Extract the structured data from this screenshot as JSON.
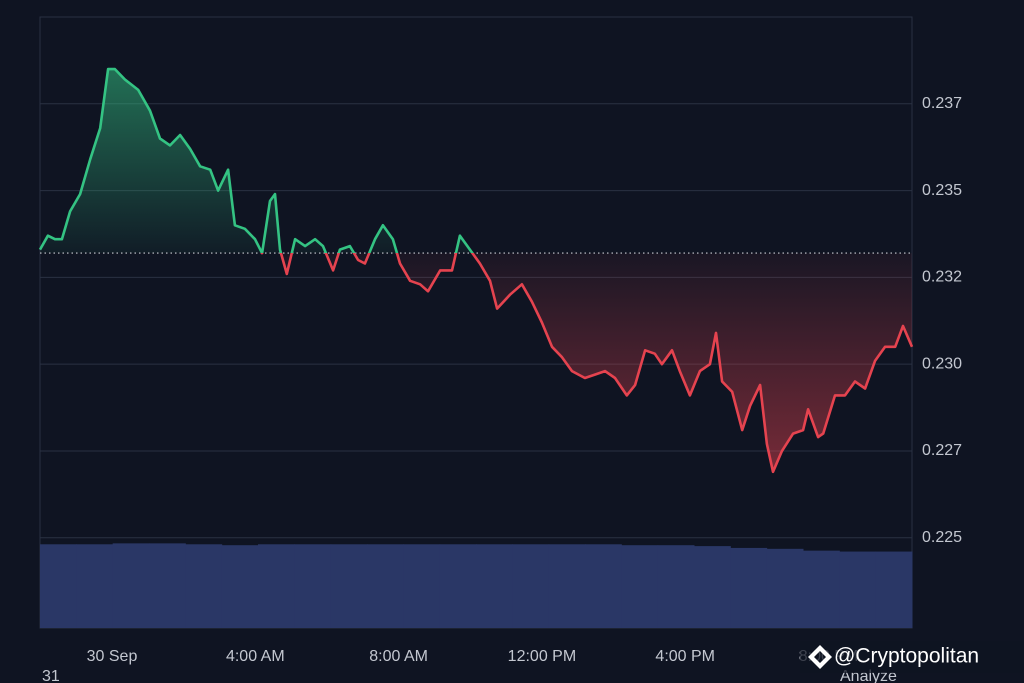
{
  "chart_data": {
    "type": "line",
    "x": [
      -2.01,
      -1.79,
      -1.59,
      -1.4,
      -1.17,
      -0.89,
      -0.61,
      -0.33,
      -0.11,
      0.08,
      0.36,
      0.73,
      1.06,
      1.34,
      1.62,
      1.9,
      2.18,
      2.46,
      2.74,
      2.96,
      3.24,
      3.43,
      3.71,
      3.99,
      4.19,
      4.41,
      4.55,
      4.69,
      4.88,
      5.11,
      5.39,
      5.67,
      5.89,
      6.17,
      6.36,
      6.64,
      6.87,
      7.06,
      7.34,
      7.56,
      7.84,
      8.04,
      8.32,
      8.6,
      8.82,
      9.16,
      9.49,
      9.71,
      9.99,
      10.27,
      10.55,
      10.75,
      11.11,
      11.44,
      11.72,
      12.0,
      12.28,
      12.56,
      12.84,
      13.2,
      13.48,
      13.76,
      14.04,
      14.37,
      14.6,
      14.88,
      15.15,
      15.35,
      15.63,
      15.85,
      16.13,
      16.41,
      16.69,
      16.86,
      17.03,
      17.31,
      17.59,
      17.81,
      18.09,
      18.28,
      18.45,
      18.7,
      19.01,
      19.29,
      19.43,
      19.71,
      19.85,
      20.18,
      20.46,
      20.74,
      21.02,
      21.3,
      21.58,
      21.86,
      22.08,
      22.33
    ],
    "values": [
      0.2333,
      0.2337,
      0.2336,
      0.2336,
      0.2344,
      0.2349,
      0.2359,
      0.2368,
      0.2385,
      0.2385,
      0.2382,
      0.2379,
      0.2373,
      0.2365,
      0.2363,
      0.2366,
      0.2362,
      0.2357,
      0.2356,
      0.235,
      0.2356,
      0.234,
      0.2339,
      0.2336,
      0.2332,
      0.2347,
      0.2349,
      0.2333,
      0.2326,
      0.2336,
      0.2334,
      0.2336,
      0.2334,
      0.2327,
      0.2333,
      0.2334,
      0.233,
      0.2329,
      0.2336,
      0.234,
      0.2336,
      0.2329,
      0.2324,
      0.2323,
      0.2321,
      0.2327,
      0.2327,
      0.2337,
      0.2333,
      0.2329,
      0.2324,
      0.2316,
      0.232,
      0.2323,
      0.2318,
      0.2312,
      0.2305,
      0.2302,
      0.2298,
      0.2296,
      0.2297,
      0.2298,
      0.2296,
      0.2291,
      0.2294,
      0.2304,
      0.2303,
      0.23,
      0.2304,
      0.2298,
      0.2291,
      0.2298,
      0.23,
      0.2309,
      0.2295,
      0.2292,
      0.2281,
      0.2288,
      0.2294,
      0.2277,
      0.2269,
      0.2275,
      0.228,
      0.2281,
      0.2287,
      0.2279,
      0.228,
      0.2291,
      0.2291,
      0.2295,
      0.2293,
      0.2301,
      0.2305,
      0.2305,
      0.2311,
      0.2305
    ],
    "baseline": 0.2332,
    "up_color": "#34c383",
    "down_color": "#e5434f",
    "xlim": [
      -2.01,
      22.33
    ],
    "xticks": [
      {
        "value": 0,
        "label": "30 Sep"
      },
      {
        "value": 4,
        "label": "4:00 AM"
      },
      {
        "value": 8,
        "label": "8:00 AM"
      },
      {
        "value": 12,
        "label": "12:00 PM"
      },
      {
        "value": 16,
        "label": "4:00 PM"
      },
      {
        "value": 20,
        "label": "8:00 PM"
      }
    ],
    "ylim": [
      0.2224,
      0.24
    ],
    "yticks": [
      0.225,
      {
        "value": 0.2275,
        "label": "0.227"
      },
      {
        "value": 0.23,
        "label": "0.230"
      },
      {
        "value": 0.2325,
        "label": "0.232"
      },
      0.235,
      {
        "value": 0.2375,
        "label": "0.237"
      }
    ],
    "grid": true,
    "volume": {
      "color": "#2a3766",
      "ylim": [
        0,
        100
      ],
      "values": [
        92,
        92,
        93,
        93,
        92,
        91,
        92,
        92,
        92,
        92,
        92,
        92,
        92,
        92,
        92,
        92,
        91,
        91,
        90,
        88,
        87,
        85,
        84,
        84
      ]
    }
  },
  "watermark": "@Cryptopolitan",
  "fragments": [
    "31",
    "Analyze"
  ]
}
